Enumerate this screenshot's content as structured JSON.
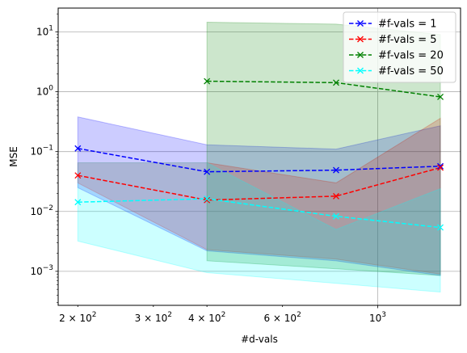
{
  "chart_data": {
    "type": "line",
    "xlabel": "#d-vals",
    "ylabel": "MSE",
    "xscale": "log",
    "yscale": "log",
    "xlim": [
      180,
      1560
    ],
    "ylim": [
      0.00027,
      25
    ],
    "grid": true,
    "legend_position": "top-right",
    "x_ticks": [
      {
        "value": 200,
        "mantissa": "2",
        "base": "10",
        "exp": "2"
      },
      {
        "value": 300,
        "mantissa": "3",
        "base": "10",
        "exp": "2"
      },
      {
        "value": 400,
        "mantissa": "4",
        "base": "10",
        "exp": "2"
      },
      {
        "value": 600,
        "mantissa": "6",
        "base": "10",
        "exp": "2"
      },
      {
        "value": 1000,
        "mantissa": "",
        "base": "10",
        "exp": "3"
      }
    ],
    "y_ticks": [
      {
        "value": 0.001,
        "base": "10",
        "exp": "−3"
      },
      {
        "value": 0.01,
        "base": "10",
        "exp": "−2"
      },
      {
        "value": 0.1,
        "base": "10",
        "exp": "−1"
      },
      {
        "value": 1,
        "base": "10",
        "exp": "0"
      },
      {
        "value": 10,
        "base": "10",
        "exp": "1"
      }
    ],
    "series": [
      {
        "name": "#f-vals = 1",
        "color": "#0000ff",
        "fill_color": "#0000ff",
        "fill_opacity": 0.2,
        "x": [
          200,
          400,
          800,
          1400
        ],
        "y": [
          0.113,
          0.046,
          0.049,
          0.057
        ],
        "lower": [
          0.025,
          0.0022,
          0.0015,
          0.00085
        ],
        "upper": [
          0.38,
          0.13,
          0.11,
          0.27
        ]
      },
      {
        "name": "#f-vals = 5",
        "color": "#ff0000",
        "fill_color": "#ff0000",
        "fill_opacity": 0.2,
        "x": [
          200,
          400,
          800,
          1400
        ],
        "y": [
          0.04,
          0.0155,
          0.018,
          0.054
        ],
        "lower": [
          0.03,
          0.0023,
          0.0016,
          0.0009
        ],
        "upper": [
          0.065,
          0.065,
          0.03,
          0.36
        ]
      },
      {
        "name": "#f-vals = 20",
        "color": "#008000",
        "fill_color": "#008000",
        "fill_opacity": 0.2,
        "x": [
          400,
          800,
          1400
        ],
        "y": [
          1.5,
          1.42,
          0.82
        ],
        "lower": [
          0.0015,
          0.0011,
          0.00085
        ],
        "upper": [
          14.5,
          13.5,
          9.0
        ]
      },
      {
        "name": "#f-vals = 50",
        "color": "#00ffff",
        "fill_color": "#00ffff",
        "fill_opacity": 0.2,
        "x": [
          200,
          400,
          800,
          1400
        ],
        "y": [
          0.0143,
          0.0163,
          0.0083,
          0.0054
        ],
        "lower": [
          0.0032,
          0.00095,
          0.00063,
          0.00045
        ],
        "upper": [
          0.065,
          0.065,
          0.005,
          0.024
        ]
      }
    ]
  }
}
